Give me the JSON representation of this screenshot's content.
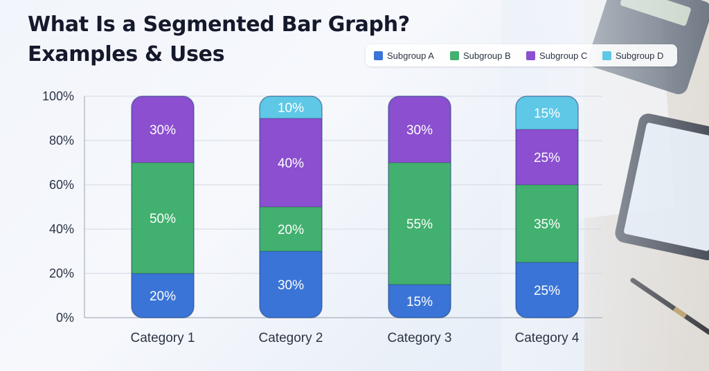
{
  "header": {
    "title_line1": "What Is a Segmented Bar Graph?",
    "title_line2": "Examples & Uses"
  },
  "chart_data": {
    "type": "bar",
    "stacked": true,
    "categories": [
      "Category 1",
      "Category 2",
      "Category 3",
      "Category 4"
    ],
    "series": [
      {
        "name": "Subgroup A",
        "color": "#3a74d6",
        "values": [
          20,
          30,
          15,
          25
        ],
        "labels": [
          "20%",
          "30%",
          "15%",
          "25%"
        ]
      },
      {
        "name": "Subgroup B",
        "color": "#42b06f",
        "values": [
          50,
          20,
          55,
          35
        ],
        "labels": [
          "50%",
          "20%",
          "55%",
          "35%"
        ]
      },
      {
        "name": "Subgroup C",
        "color": "#8b4fd0",
        "values": [
          30,
          40,
          30,
          25
        ],
        "labels": [
          "30%",
          "40%",
          "30%",
          "25%"
        ]
      },
      {
        "name": "Subgroup D",
        "color": "#5ec8e6",
        "values": [
          0,
          10,
          0,
          15
        ],
        "labels": [
          "",
          "10%",
          "",
          "15%"
        ]
      }
    ],
    "ylim": [
      0,
      100
    ],
    "yticks": [
      0,
      20,
      40,
      60,
      80,
      100
    ],
    "ytick_labels": [
      "0%",
      "20%",
      "40%",
      "60%",
      "80%",
      "100%"
    ],
    "grid": true,
    "legend_position": "top-right"
  }
}
